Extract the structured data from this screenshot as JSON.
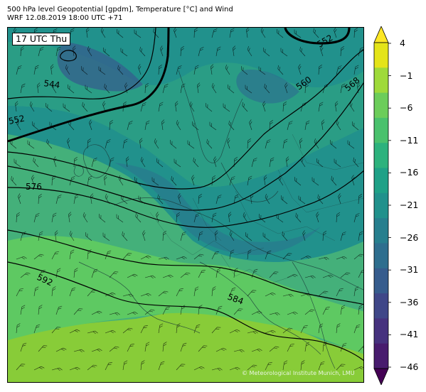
{
  "header": {
    "title_line1": "500 hPa level Geopotential [gpdm], Temperature [°C] and Wind",
    "title_line2": "WRF 12.08.2019 18:00 UTC +71"
  },
  "map": {
    "time_label": "17 UTC Thu",
    "credit": "© Meteorological Institute Munich, LMU",
    "contour_labels": [
      "544",
      "552",
      "552",
      "560",
      "568",
      "576",
      "584",
      "592"
    ],
    "colors": {
      "deep_blue": "#355f8d",
      "blue": "#2c728e",
      "teal": "#21918c",
      "green_teal": "#2a9d85",
      "green": "#44b07a",
      "light_green": "#5ec962",
      "yellow_green": "#88cc38"
    }
  },
  "colorbar": {
    "tick_labels": [
      "4",
      "−1",
      "−6",
      "−11",
      "−16",
      "−21",
      "−26",
      "−31",
      "−36",
      "−41",
      "−46"
    ],
    "bands": [
      "#e4e419",
      "#9fda3a",
      "#6ccd5a",
      "#4ac16d",
      "#2db27d",
      "#1fa187",
      "#21918c",
      "#277f8e",
      "#2e6e8e",
      "#365c8d",
      "#3f4788",
      "#46327e",
      "#481c6e"
    ],
    "over_color": "#fde725",
    "under_color": "#440154"
  }
}
